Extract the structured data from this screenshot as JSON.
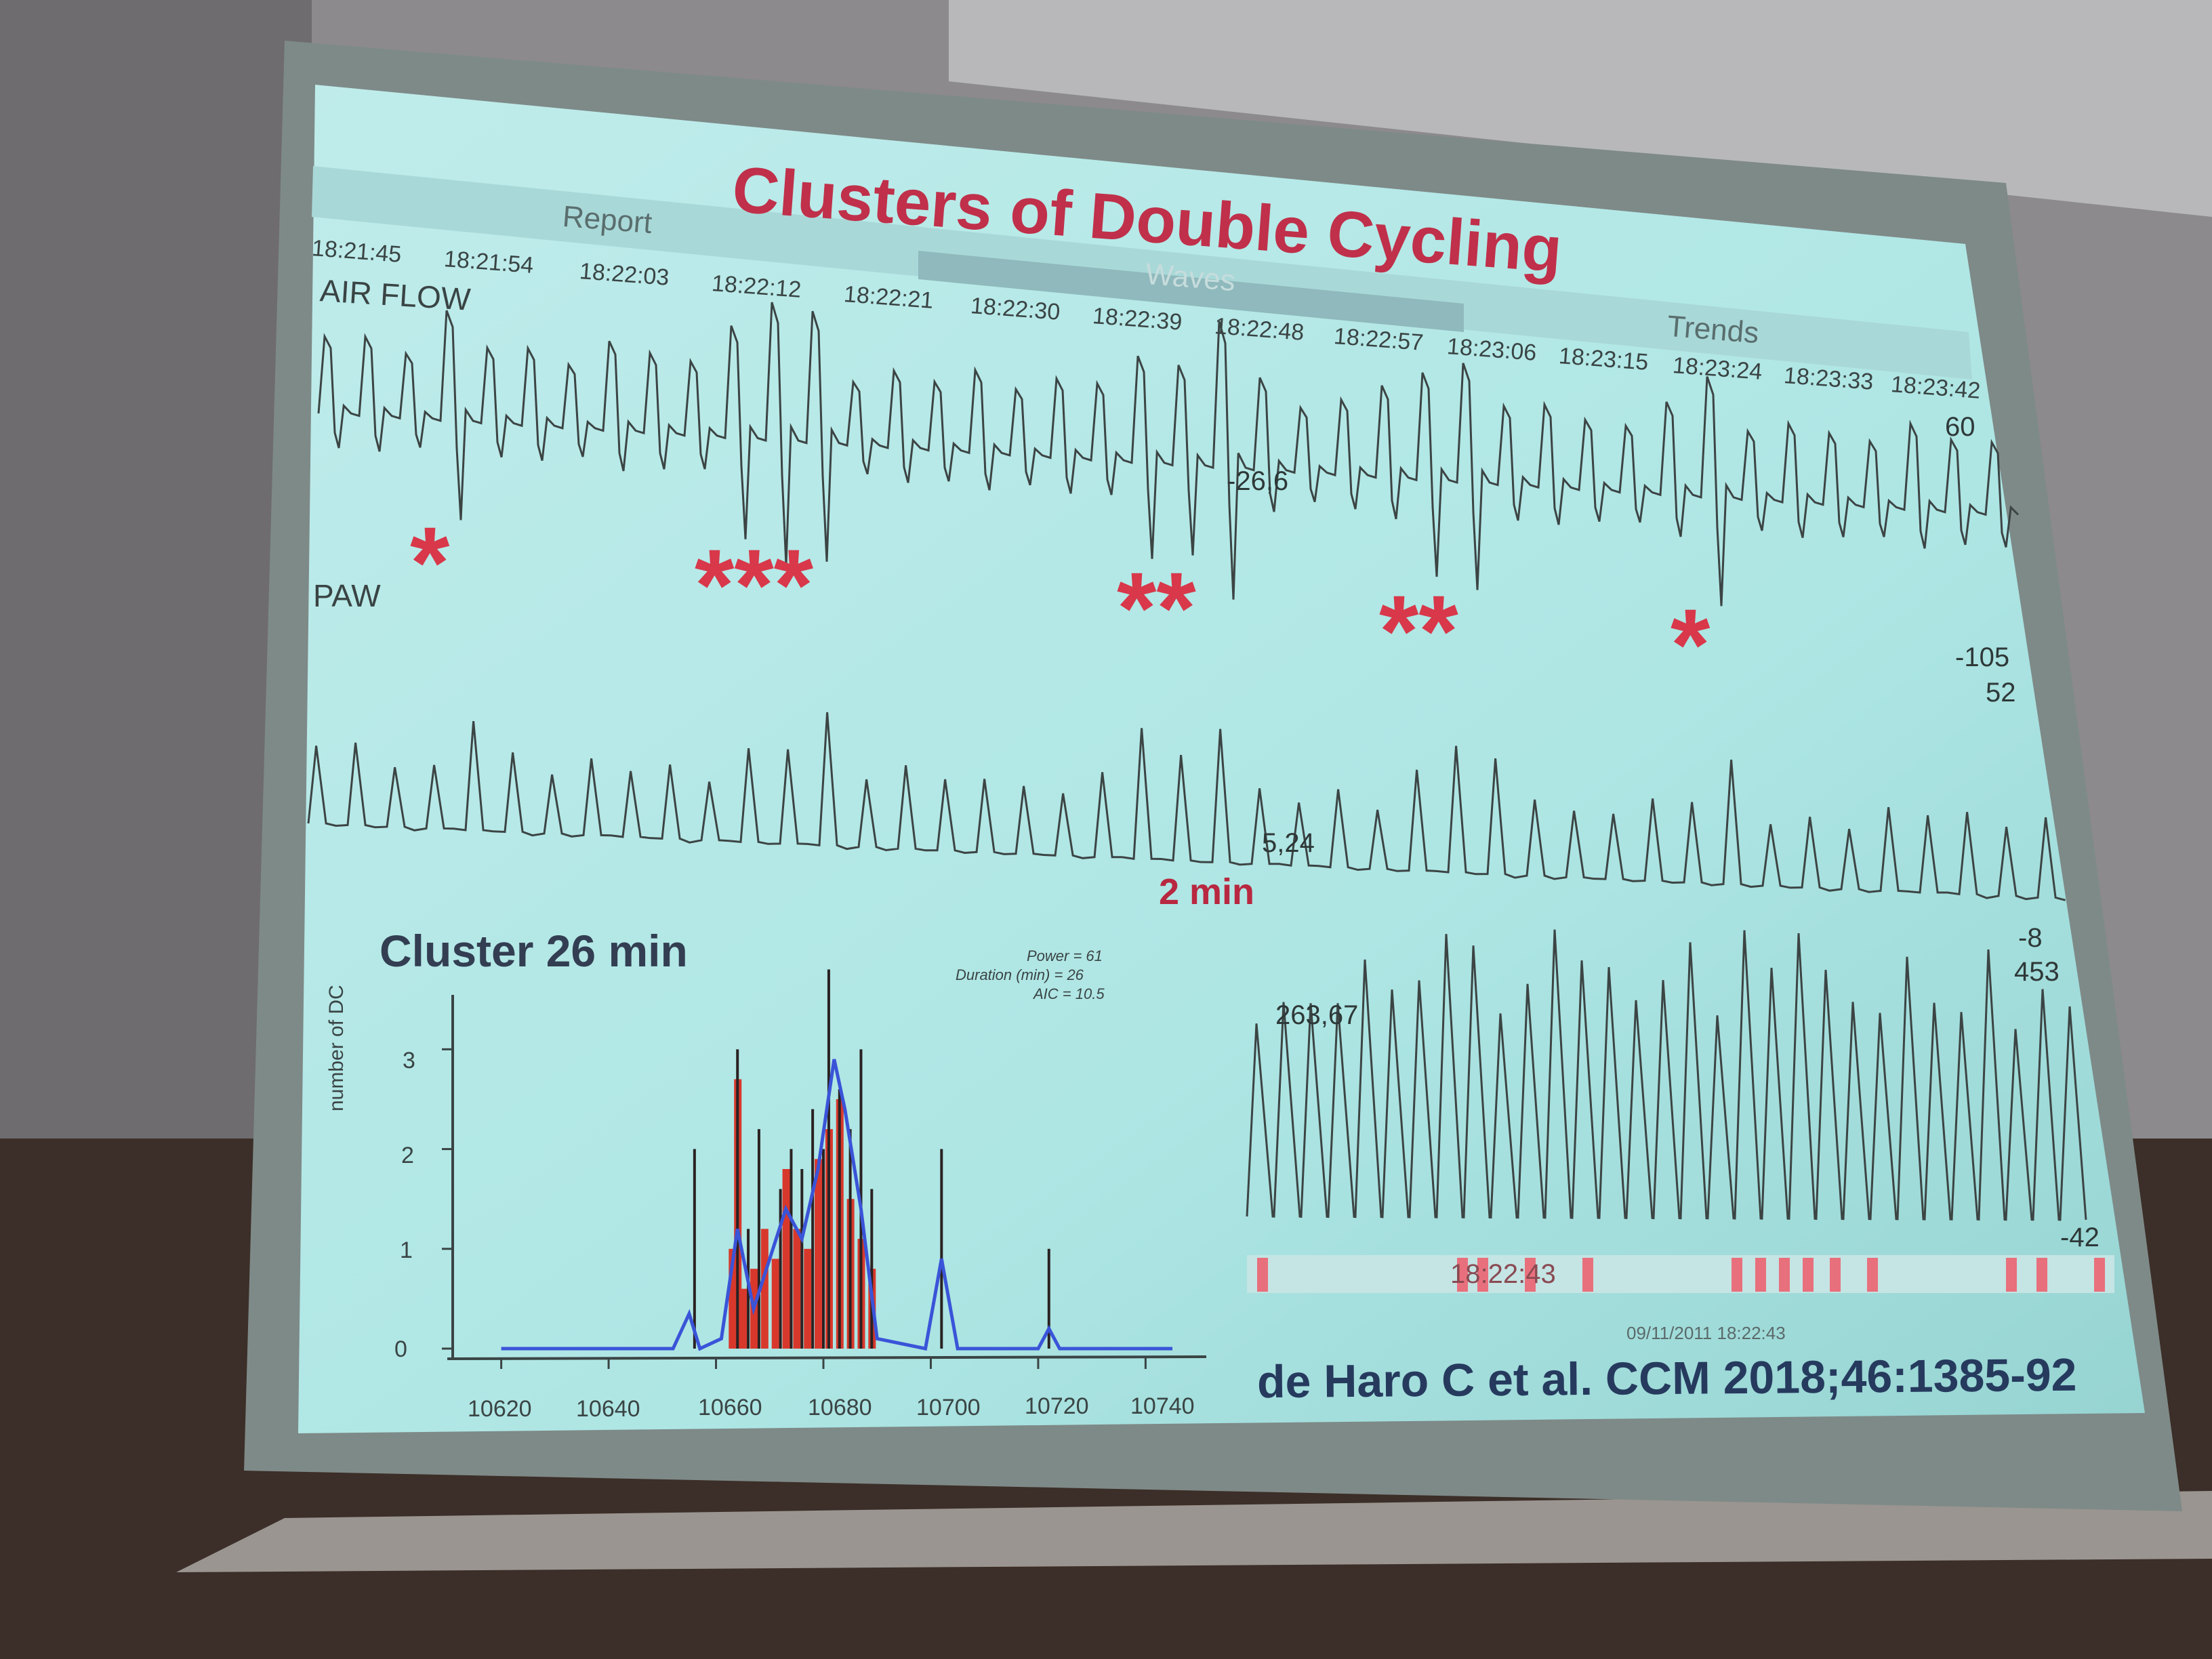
{
  "slide": {
    "title": "Clusters of Double Cycling",
    "tabs": [
      "Report",
      "Waves",
      "Trends"
    ],
    "time_axis": [
      "18:21:45",
      "18:21:54",
      "18:22:03",
      "18:22:12",
      "18:22:21",
      "18:22:30",
      "18:22:39",
      "18:22:48",
      "18:22:57",
      "18:23:06",
      "18:23:15",
      "18:23:24",
      "18:23:33",
      "18:23:42"
    ],
    "airflow": {
      "label": "AIR FLOW",
      "max": "60",
      "readout": "-26,6",
      "min": "-105"
    },
    "paw": {
      "label": "PAW",
      "max": "52",
      "readout": "5,24",
      "min": "-8"
    },
    "volume": {
      "max": "453",
      "readout": "263,67",
      "min": "-42",
      "event_time": "18:22:43",
      "footer": "09/11/2011 18:22:43"
    },
    "markers": [
      "*",
      "***",
      "**",
      "**",
      "*"
    ],
    "window_caption": "2 min",
    "citation": "de Haro C et al. CCM 2018;46:1385-92"
  },
  "chart_data": {
    "type": "bar",
    "title": "Cluster 26 min",
    "xlabel": "",
    "ylabel": "number of DC",
    "x_ticks": [
      "10620",
      "10640",
      "10660",
      "10680",
      "10700",
      "10720",
      "10740"
    ],
    "y_ticks": [
      "0",
      "1",
      "2",
      "3"
    ],
    "xlim": [
      10615,
      10745
    ],
    "ylim": [
      0,
      3.6
    ],
    "stats": {
      "power": "Power = 61",
      "duration": "Duration (min) = 26",
      "aic": "AIC = 10.5"
    },
    "black_spikes": [
      {
        "x": 10656,
        "y": 2.0
      },
      {
        "x": 10664,
        "y": 3.0
      },
      {
        "x": 10666,
        "y": 1.2
      },
      {
        "x": 10668,
        "y": 2.2
      },
      {
        "x": 10672,
        "y": 1.6
      },
      {
        "x": 10674,
        "y": 2.0
      },
      {
        "x": 10676,
        "y": 1.8
      },
      {
        "x": 10678,
        "y": 2.4
      },
      {
        "x": 10680,
        "y": 2.0
      },
      {
        "x": 10681,
        "y": 3.8
      },
      {
        "x": 10683,
        "y": 2.6
      },
      {
        "x": 10685,
        "y": 2.2
      },
      {
        "x": 10687,
        "y": 3.0
      },
      {
        "x": 10689,
        "y": 1.6
      },
      {
        "x": 10702,
        "y": 2.0
      },
      {
        "x": 10722,
        "y": 1.0
      }
    ],
    "red_bars": [
      {
        "x": 10663,
        "y": 1.0
      },
      {
        "x": 10664,
        "y": 2.7
      },
      {
        "x": 10665,
        "y": 0.6
      },
      {
        "x": 10667,
        "y": 0.8
      },
      {
        "x": 10669,
        "y": 1.2
      },
      {
        "x": 10671,
        "y": 0.9
      },
      {
        "x": 10673,
        "y": 1.8
      },
      {
        "x": 10675,
        "y": 1.2
      },
      {
        "x": 10677,
        "y": 1.0
      },
      {
        "x": 10679,
        "y": 1.9
      },
      {
        "x": 10681,
        "y": 2.2
      },
      {
        "x": 10683,
        "y": 2.5
      },
      {
        "x": 10685,
        "y": 1.5
      },
      {
        "x": 10687,
        "y": 1.1
      },
      {
        "x": 10689,
        "y": 0.8
      }
    ],
    "blue_fit": [
      {
        "x": 10620,
        "y": 0.0
      },
      {
        "x": 10652,
        "y": 0.0
      },
      {
        "x": 10655,
        "y": 0.35
      },
      {
        "x": 10657,
        "y": 0.0
      },
      {
        "x": 10661,
        "y": 0.1
      },
      {
        "x": 10664,
        "y": 1.2
      },
      {
        "x": 10667,
        "y": 0.4
      },
      {
        "x": 10670,
        "y": 0.9
      },
      {
        "x": 10673,
        "y": 1.4
      },
      {
        "x": 10676,
        "y": 1.1
      },
      {
        "x": 10679,
        "y": 1.8
      },
      {
        "x": 10682,
        "y": 2.9
      },
      {
        "x": 10684,
        "y": 2.4
      },
      {
        "x": 10687,
        "y": 1.4
      },
      {
        "x": 10690,
        "y": 0.1
      },
      {
        "x": 10699,
        "y": 0.0
      },
      {
        "x": 10702,
        "y": 0.9
      },
      {
        "x": 10705,
        "y": 0.0
      },
      {
        "x": 10720,
        "y": 0.0
      },
      {
        "x": 10722,
        "y": 0.2
      },
      {
        "x": 10724,
        "y": 0.0
      },
      {
        "x": 10745,
        "y": 0.0
      }
    ]
  }
}
